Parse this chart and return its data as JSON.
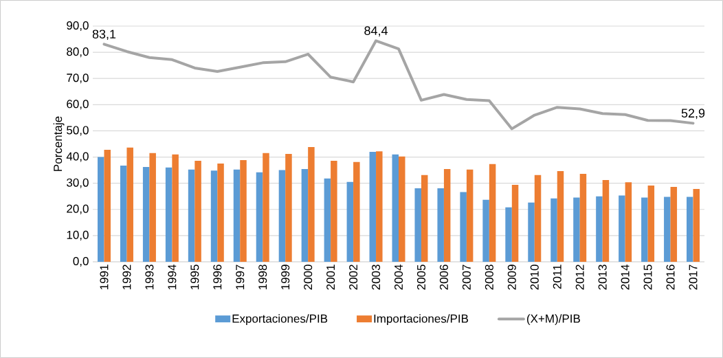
{
  "chart_data": {
    "type": "bar",
    "ylabel": "Porcentaje",
    "categories": [
      "1991",
      "1992",
      "1993",
      "1994",
      "1995",
      "1996",
      "1997",
      "1998",
      "1999",
      "2000",
      "2001",
      "2002",
      "2003",
      "2004",
      "2005",
      "2006",
      "2007",
      "2008",
      "2009",
      "2010",
      "2011",
      "2012",
      "2013",
      "2014",
      "2015",
      "2016",
      "2017"
    ],
    "series": [
      {
        "name": "Exportaciones/PIB",
        "color": "#5b9bd5",
        "values": [
          40.0,
          36.7,
          36.2,
          36.0,
          35.2,
          34.8,
          35.2,
          34.2,
          35.0,
          35.4,
          31.8,
          30.5,
          42.0,
          41.0,
          28.1,
          28.1,
          26.6,
          23.7,
          20.8,
          22.6,
          24.2,
          24.5,
          25.0,
          25.3,
          24.5,
          24.8,
          24.8
        ]
      },
      {
        "name": "Importaciones/PIB",
        "color": "#ed7d31",
        "values": [
          42.8,
          43.6,
          41.5,
          41.0,
          38.6,
          37.5,
          38.8,
          41.5,
          41.2,
          43.8,
          38.6,
          38.1,
          42.2,
          40.2,
          33.1,
          35.4,
          35.2,
          37.3,
          29.4,
          33.1,
          34.6,
          33.6,
          31.2,
          30.4,
          29.1,
          28.6,
          27.8
        ]
      },
      {
        "name": "(X+M)/PIB",
        "type": "line",
        "color": "#a5a5a5",
        "values": [
          83.1,
          80.3,
          78.0,
          77.2,
          74.0,
          72.7,
          74.3,
          76.0,
          76.4,
          79.3,
          70.5,
          68.7,
          84.4,
          81.3,
          61.7,
          63.9,
          62.0,
          61.5,
          50.8,
          56.0,
          59.0,
          58.4,
          56.6,
          56.2,
          54.0,
          53.9,
          52.9
        ],
        "value_labels": [
          "83,1",
          null,
          null,
          null,
          null,
          null,
          null,
          null,
          null,
          null,
          null,
          null,
          "84,4",
          null,
          null,
          null,
          null,
          null,
          null,
          null,
          null,
          null,
          null,
          null,
          null,
          null,
          "52,9"
        ]
      }
    ],
    "ylim": [
      0,
      90
    ],
    "yticks": [
      {
        "value": 0,
        "label": "0,0"
      },
      {
        "value": 10,
        "label": "10,0"
      },
      {
        "value": 20,
        "label": "20,0"
      },
      {
        "value": 30,
        "label": "30,0"
      },
      {
        "value": 40,
        "label": "40,0"
      },
      {
        "value": 50,
        "label": "50,0"
      },
      {
        "value": 60,
        "label": "60,0"
      },
      {
        "value": 70,
        "label": "70,0"
      },
      {
        "value": 80,
        "label": "80,0"
      },
      {
        "value": 90,
        "label": "90,0"
      }
    ],
    "grid": "y",
    "legend": "bottom"
  }
}
